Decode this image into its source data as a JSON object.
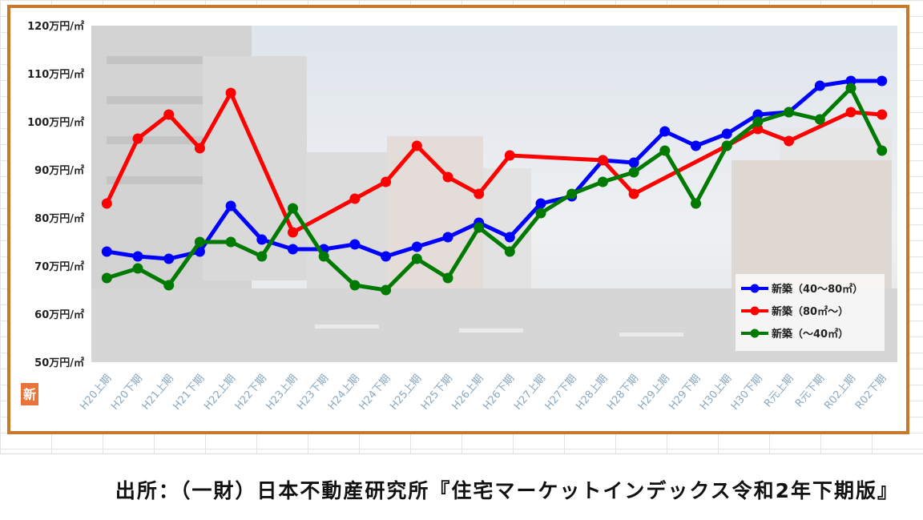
{
  "chart_data": {
    "type": "line",
    "categories": [
      "H20上期",
      "H20下期",
      "H21上期",
      "H21下期",
      "H22上期",
      "H22下期",
      "H23上期",
      "H23下期",
      "H24上期",
      "H24下期",
      "H25上期",
      "H25下期",
      "H26上期",
      "H26下期",
      "H27上期",
      "H27下期",
      "H28上期",
      "H28下期",
      "H29上期",
      "H29下期",
      "H30上期",
      "H30下期",
      "R元上期",
      "R元下期",
      "R02上期",
      "R02下期"
    ],
    "y_tick_labels": [
      "120万円/㎡",
      "110万円/㎡",
      "100万円/㎡",
      "90万円/㎡",
      "80万円/㎡",
      "70万円/㎡",
      "60万円/㎡",
      "50万円/㎡"
    ],
    "ylim": [
      50,
      120
    ],
    "grid": false,
    "legend_position": "bottom-right",
    "series": [
      {
        "name": "新築（40～80㎡）",
        "color": "#0000ff",
        "values": [
          73,
          72,
          71.5,
          73,
          82.5,
          75.5,
          73.5,
          73.5,
          74.5,
          72,
          74,
          76,
          79,
          76,
          83,
          84.5,
          92,
          91.5,
          98,
          95,
          97.5,
          101.5,
          102,
          107.5,
          108.5,
          108.5
        ]
      },
      {
        "name": "新築（80㎡～）",
        "color": "#ff0000",
        "values": [
          83,
          96.5,
          101.5,
          94.5,
          106,
          null,
          77,
          null,
          84,
          87.5,
          95,
          88.5,
          85,
          93,
          null,
          null,
          92,
          85,
          null,
          null,
          95,
          98.5,
          96,
          null,
          102,
          101.5
        ]
      },
      {
        "name": "新築（～40㎡）",
        "color": "#007a00",
        "values": [
          67.5,
          69.5,
          66,
          75,
          75,
          72,
          82,
          72,
          66,
          65,
          71.5,
          67.5,
          78,
          73,
          81,
          85,
          87.5,
          89.5,
          94,
          83,
          95,
          100,
          102,
          100.5,
          107,
          94
        ]
      }
    ]
  },
  "logo_text": "新",
  "source_note": "出所：（一財）日本不動産研究所『住宅マーケットインデックス令和2年下期版』"
}
